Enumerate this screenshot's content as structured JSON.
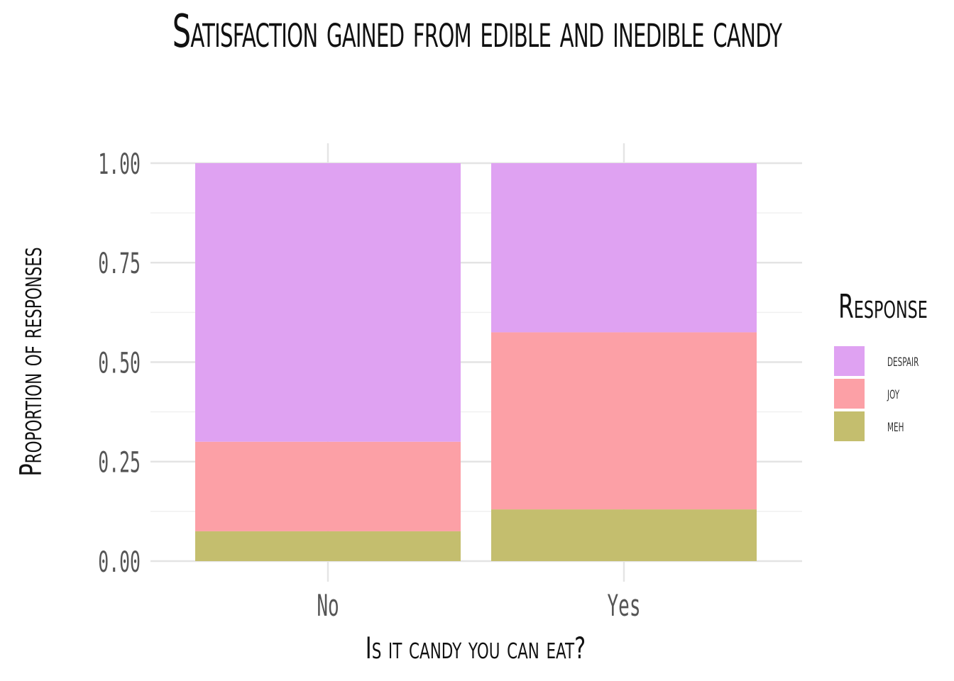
{
  "chart_data": {
    "type": "bar",
    "stacked": true,
    "title": "Satisfaction gained from edible and inedible candy",
    "xlabel": "Is it candy you can eat?",
    "ylabel": "Proportion of responses",
    "categories": [
      "No",
      "Yes"
    ],
    "ylim": [
      0,
      1
    ],
    "yticks": [
      "0.00",
      "0.25",
      "0.50",
      "0.75",
      "1.00"
    ],
    "legend_title": "Response",
    "legend_position": "right",
    "grid": true,
    "series": [
      {
        "name": "despair",
        "color": "#DFA2F2",
        "values": [
          0.7,
          0.425
        ]
      },
      {
        "name": "joy",
        "color": "#FCA0A6",
        "values": [
          0.225,
          0.445
        ]
      },
      {
        "name": "meh",
        "color": "#C4BE6E",
        "values": [
          0.075,
          0.13
        ]
      }
    ]
  }
}
